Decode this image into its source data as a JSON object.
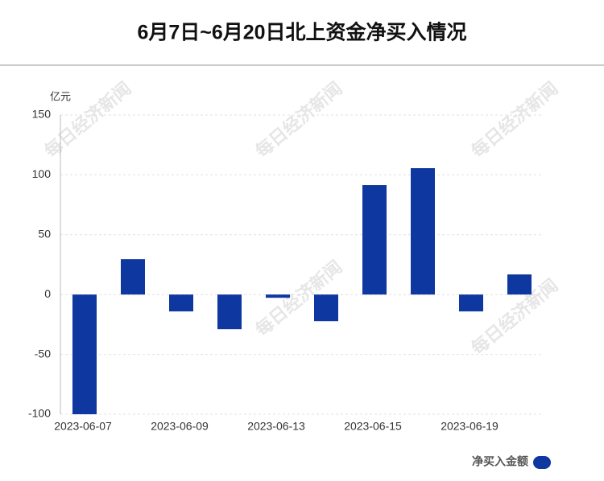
{
  "chart_data": {
    "type": "bar",
    "title": "6月7日~6月20日北上资金净买入情况",
    "y_axis_label": "亿元",
    "watermark": "每日经济新闻",
    "categories": [
      "2023-06-07",
      null,
      "2023-06-09",
      null,
      "2023-06-13",
      null,
      "2023-06-15",
      null,
      "2023-06-19",
      null
    ],
    "series": [
      {
        "name": "净买入金额",
        "color": "#0f37a0",
        "values": [
          -100,
          29.6,
          -14.1,
          -28.9,
          -2.7,
          -22.2,
          91.5,
          105.6,
          -14.1,
          16.8
        ]
      }
    ],
    "ylim": [
      -100,
      150
    ],
    "yticks": [
      -100,
      -50,
      0,
      50,
      100,
      150
    ],
    "grid": true,
    "legend": "bottom-right"
  }
}
